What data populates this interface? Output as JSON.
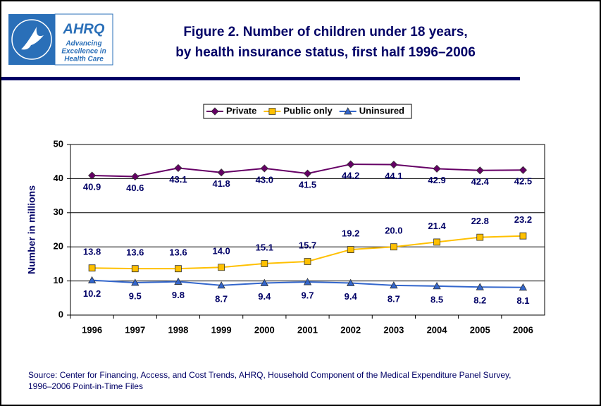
{
  "logo": {
    "name": "AHRQ",
    "tagline": [
      "Advancing",
      "Excellence in",
      "Health Care"
    ]
  },
  "chart_data": {
    "type": "line",
    "title": [
      "Figure 2. Number of children under 18 years,",
      "by health insurance status, first half 1996–2006"
    ],
    "y_label": "Number in millions",
    "categories": [
      "1996",
      "1997",
      "1998",
      "1999",
      "2000",
      "2001",
      "2002",
      "2003",
      "2004",
      "2005",
      "2006"
    ],
    "series": [
      {
        "name": "Private",
        "color": "#660066",
        "marker": "diamond",
        "values": [
          40.9,
          40.6,
          43.1,
          41.8,
          43.0,
          41.5,
          44.2,
          44.1,
          42.9,
          42.4,
          42.5
        ],
        "value_labels": [
          "40.9",
          "40.6",
          "43.1",
          "41.8",
          "43.0",
          "41.5",
          "44.2",
          "44.1",
          "42.9",
          "42.4",
          "42.5"
        ]
      },
      {
        "name": "Public only",
        "color": "#FFC000",
        "marker": "square",
        "values": [
          13.8,
          13.6,
          13.6,
          14.0,
          15.1,
          15.7,
          19.2,
          20.0,
          21.4,
          22.8,
          23.2
        ],
        "value_labels": [
          "13.8",
          "13.6",
          "13.6",
          "14.0",
          "15.1",
          "15.7",
          "19.2",
          "20.0",
          "21.4",
          "22.8",
          "23.2"
        ]
      },
      {
        "name": "Uninsured",
        "color": "#3366CC",
        "marker": "triangle",
        "values": [
          10.2,
          9.5,
          9.8,
          8.7,
          9.4,
          9.7,
          9.4,
          8.7,
          8.5,
          8.2,
          8.1
        ],
        "value_labels": [
          "10.2",
          "9.5",
          "9.8",
          "8.7",
          "9.4",
          "9.7",
          "9.4",
          "8.7",
          "8.5",
          "8.2",
          "8.1"
        ]
      }
    ],
    "ylim": [
      0,
      50
    ],
    "yticks": [
      0,
      10,
      20,
      30,
      40,
      50
    ],
    "grid": true,
    "legend": "top",
    "source": [
      "Source: Center for Financing, Access, and Cost Trends, AHRQ, Household Component of the Medical Expenditure Panel Survey,",
      "1996–2006 Point-in-Time Files"
    ]
  }
}
